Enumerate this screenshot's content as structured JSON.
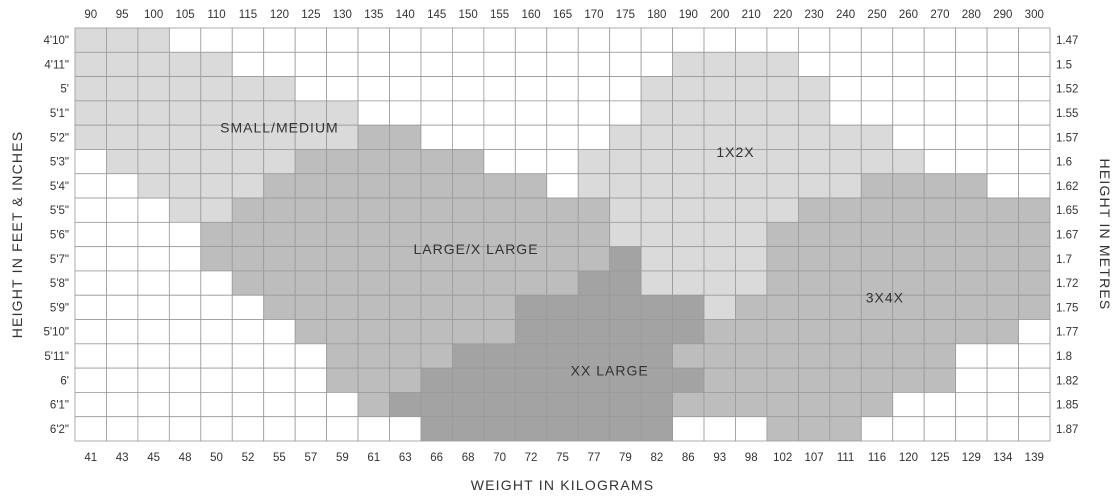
{
  "chart_data": {
    "type": "heatmap",
    "top_ticks": [
      "90",
      "95",
      "100",
      "105",
      "110",
      "115",
      "120",
      "125",
      "130",
      "135",
      "140",
      "145",
      "150",
      "155",
      "160",
      "165",
      "170",
      "175",
      "180",
      "190",
      "200",
      "210",
      "220",
      "230",
      "240",
      "250",
      "260",
      "270",
      "280",
      "290",
      "300"
    ],
    "bottom_ticks": [
      "41",
      "43",
      "45",
      "48",
      "50",
      "52",
      "55",
      "57",
      "59",
      "61",
      "63",
      "66",
      "68",
      "70",
      "72",
      "75",
      "77",
      "79",
      "82",
      "86",
      "93",
      "98",
      "102",
      "107",
      "111",
      "116",
      "120",
      "125",
      "129",
      "134",
      "139"
    ],
    "left_ticks": [
      "4'10\"",
      "4'11\"",
      "5'",
      "5'1\"",
      "5'2\"",
      "5'3\"",
      "5'4\"",
      "5'5\"",
      "5'6\"",
      "5'7\"",
      "5'8\"",
      "5'9\"",
      "5'10\"",
      "5'11\"",
      "6'",
      "6'1\"",
      "6'2\""
    ],
    "right_ticks": [
      "1.47",
      "1.5",
      "1.52",
      "1.55",
      "1.57",
      "1.6",
      "1.62",
      "1.65",
      "1.67",
      "1.7",
      "1.72",
      "1.75",
      "1.77",
      "1.8",
      "1.82",
      "1.85",
      "1.87"
    ],
    "xlabel": "WEIGHT IN KILOGRAMS",
    "ylabel_left": "HEIGHT IN FEET & INCHES",
    "ylabel_right": "HEIGHT IN METRES",
    "sizes": [
      {
        "name": "SMALL/MEDIUM",
        "code": "S",
        "color": "#dadada"
      },
      {
        "name": "1X2X",
        "code": "T",
        "color": "#dadada"
      },
      {
        "name": "LARGE/X LARGE",
        "code": "L",
        "color": "#bdbdbd"
      },
      {
        "name": "3X4X",
        "code": "F",
        "color": "#bdbdbd"
      },
      {
        "name": "XX LARGE",
        "code": "X",
        "color": "#a3a3a3"
      }
    ],
    "grid": [
      "SSS............................",
      "SSSSS..............TTTT........",
      "SSSSSSS...........TTTTTT.......",
      "SSSSSSSSS.........TTTTTT.......",
      "SSSSSSSSSLL......TTTTTTTTT.....",
      ".SSSSSSLLLLLL...TTTTTTTTTTT....",
      "..SSSSLLLLLLLLL.TTTTTTTTTFFFF..",
      "...SSLLLLLLLLLLLLTTTTTTFFFFFFFF",
      "....LLLLLLLLLLLLLTTTTTFFFFFFFFF",
      "....LLLLLLLLLLLLLXTTTTFFFFFFFFF",
      ".....LLLLLLLLLLLXXTTTTFFFFFFFFF",
      "......LLLLLLLLXXXXXXTFFFFFFFFFF",
      ".......LLLLLLLXXXXXXFFFFFFFFFF.",
      "........LLLLXXXXXXXFFFFFFFFF...",
      "........LLLXXXXXXXXXFFFFFFFF...",
      ".........LXXXXXXXXXFFFFFFF.....",
      "...........XXXXXXXX...FFF......"
    ],
    "labels": [
      "SMALL/MEDIUM",
      "LARGE/X LARGE",
      "1X2X",
      "3X4X",
      "XX LARGE"
    ],
    "grid_lines": true,
    "empty_color": "#ffffff",
    "grid_line_color": "#9a9a9a"
  }
}
